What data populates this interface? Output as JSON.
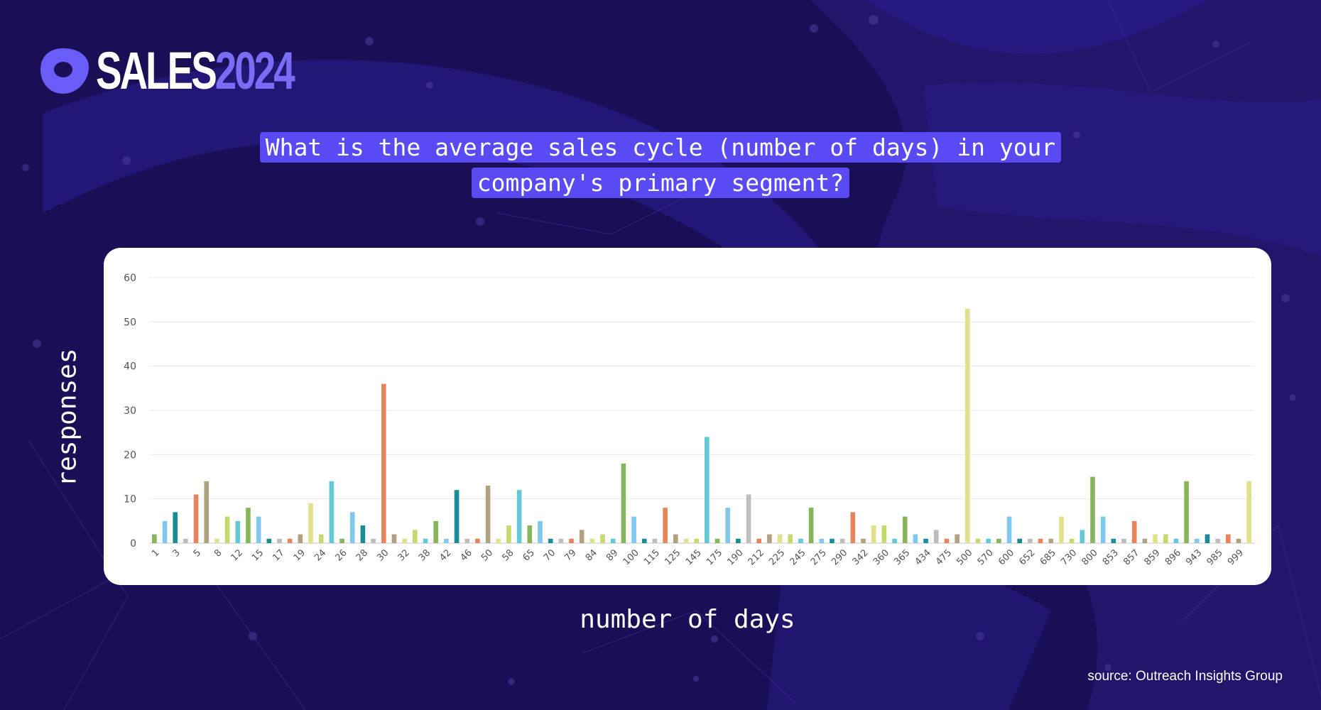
{
  "logo": {
    "word": "SALES",
    "year": "2024",
    "icon": "outreach-logo-icon"
  },
  "question": {
    "line1": "What is the average sales cycle (number of days) in your",
    "line2": "company's primary segment?"
  },
  "source": "source: Outreach Insights Group",
  "colors": {
    "background": "#1a0f56",
    "highlight": "#5a4af4",
    "palette": [
      "#86b55c",
      "#7fc8f0",
      "#1a8c98",
      "#bdbdbd",
      "#e7845b",
      "#b0a281",
      "#e3e08b",
      "#c7d86c",
      "#63c9d6"
    ]
  },
  "chart_data": {
    "type": "bar",
    "xlabel": "number of days",
    "ylabel": "responses",
    "ylim": [
      0,
      60
    ],
    "yticks": [
      0,
      10,
      20,
      30,
      40,
      50,
      60
    ],
    "grid": true,
    "tick_labels": [
      "1",
      "3",
      "5",
      "8",
      "12",
      "15",
      "17",
      "19",
      "24",
      "26",
      "28",
      "30",
      "32",
      "38",
      "42",
      "46",
      "50",
      "58",
      "65",
      "70",
      "79",
      "84",
      "89",
      "100",
      "115",
      "125",
      "145",
      "175",
      "190",
      "212",
      "225",
      "245",
      "275",
      "290",
      "342",
      "360",
      "365",
      "434",
      "475",
      "500",
      "570",
      "600",
      "652",
      "685",
      "730",
      "800",
      "853",
      "857",
      "859",
      "896",
      "943",
      "985",
      "999"
    ],
    "values": [
      2,
      5,
      7,
      1,
      11,
      14,
      1,
      6,
      5,
      8,
      6,
      1,
      1,
      1,
      2,
      9,
      2,
      14,
      1,
      7,
      4,
      1,
      36,
      2,
      1,
      3,
      1,
      5,
      1,
      12,
      1,
      1,
      13,
      1,
      4,
      12,
      4,
      5,
      1,
      1,
      1,
      3,
      1,
      2,
      1,
      18,
      6,
      1,
      1,
      8,
      2,
      1,
      1,
      24,
      1,
      8,
      1,
      11,
      1,
      2,
      2,
      2,
      1,
      8,
      1,
      1,
      1,
      7,
      1,
      4,
      4,
      1,
      6,
      2,
      1,
      3,
      1,
      2,
      53,
      1,
      1,
      1,
      6,
      1,
      1,
      1,
      1,
      6,
      1,
      3,
      15,
      6,
      1,
      1,
      5,
      1,
      2,
      2,
      1,
      14,
      1,
      2,
      1,
      2,
      1,
      14
    ]
  }
}
